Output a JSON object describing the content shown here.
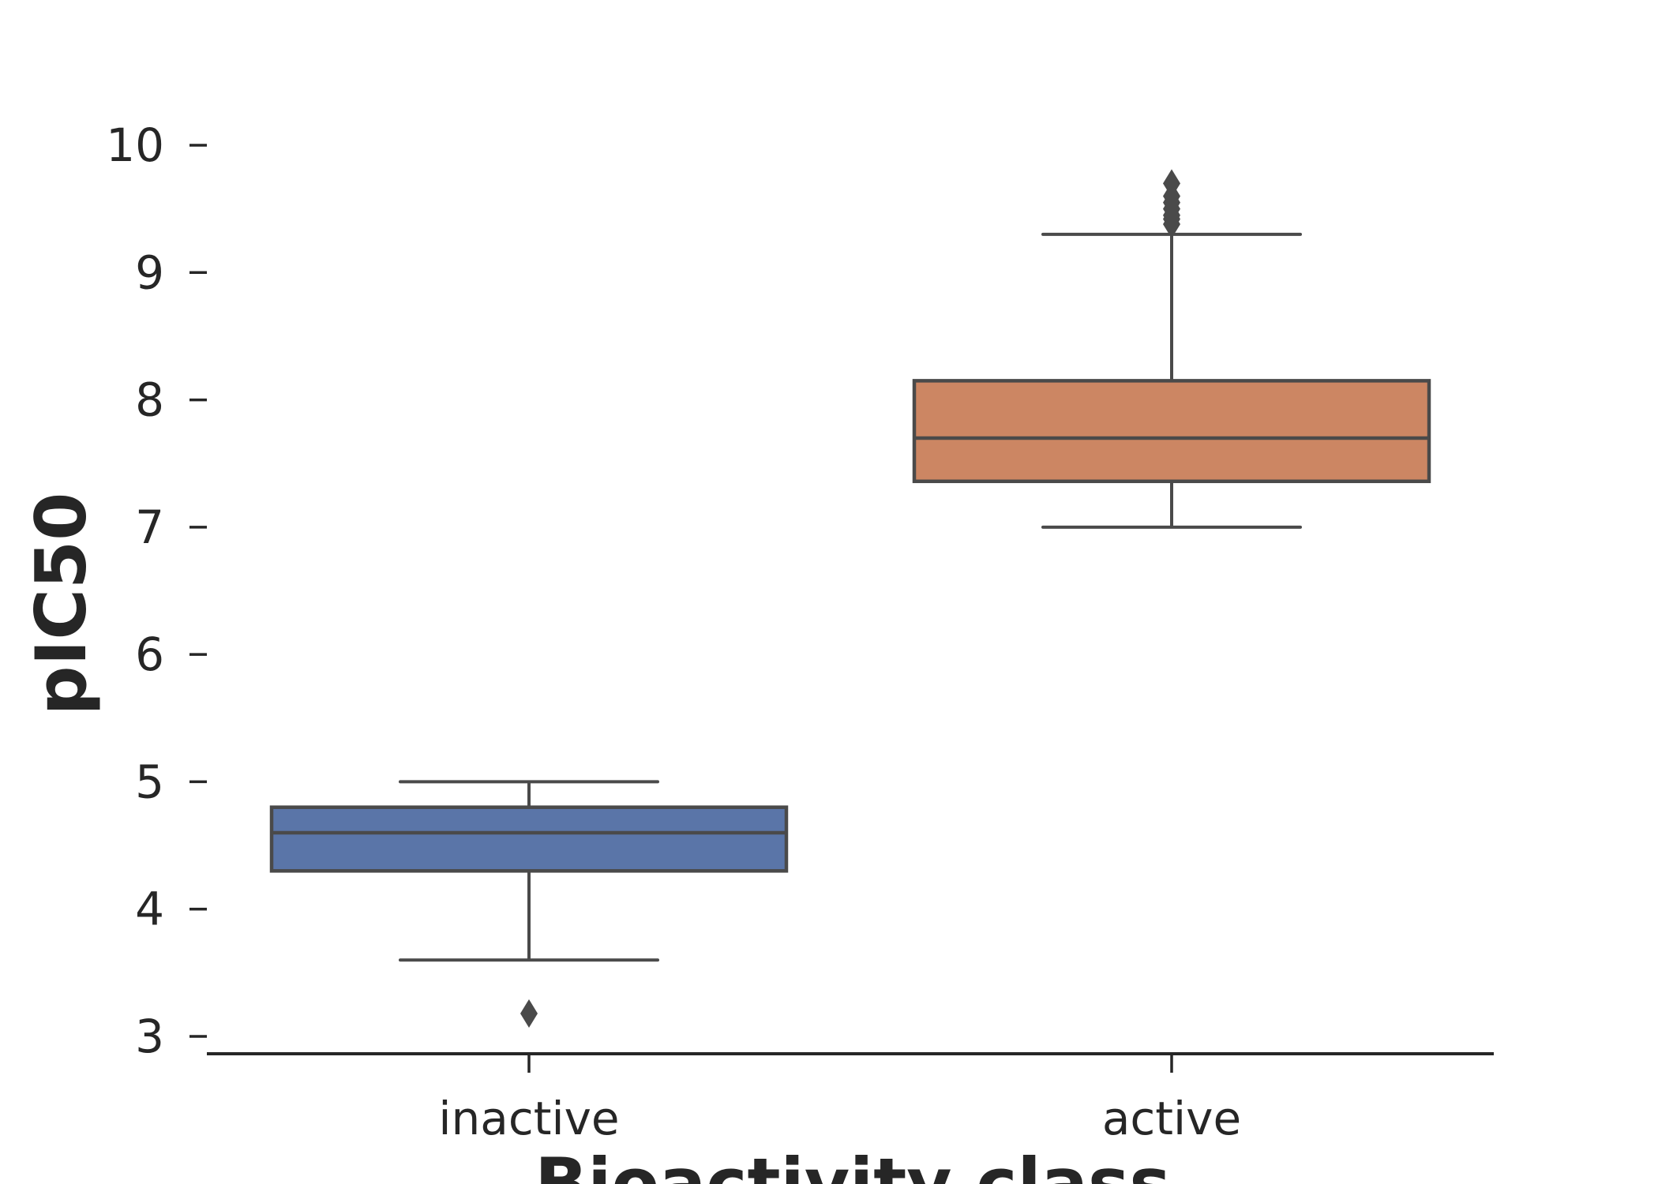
{
  "chart_data": {
    "type": "boxplot",
    "xlabel": "Bioactivity class",
    "ylabel": "pIC50",
    "categories": [
      "inactive",
      "active"
    ],
    "ylim": [
      2.85,
      10.6
    ],
    "yticks": [
      3,
      4,
      5,
      6,
      7,
      8,
      9,
      10
    ],
    "grid": false,
    "boxes": [
      {
        "category": "inactive",
        "color": "#5a75a8",
        "whisker_low": 3.6,
        "q1": 4.3,
        "median": 4.6,
        "q3": 4.8,
        "whisker_high": 5.0,
        "outliers": [
          3.18
        ]
      },
      {
        "category": "active",
        "color": "#cc8663",
        "whisker_low": 7.0,
        "q1": 7.36,
        "median": 7.7,
        "q3": 8.15,
        "whisker_high": 9.3,
        "outliers": [
          9.38,
          9.42,
          9.45,
          9.5,
          9.55,
          9.6,
          9.7
        ]
      }
    ],
    "colors": {
      "line": "#4a4a4a",
      "axis": "#262626"
    }
  }
}
